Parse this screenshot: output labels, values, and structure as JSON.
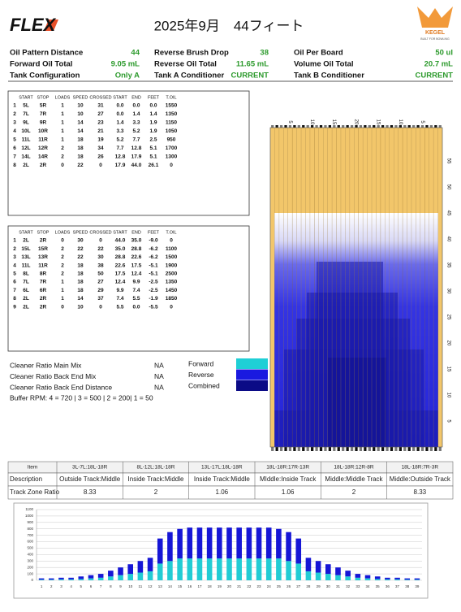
{
  "header": {
    "logo": "FLEX",
    "title": "2025年9月　44フィート",
    "brand": "KEGEL",
    "brand_tagline": "BUILT FOR BOWLING"
  },
  "info": [
    [
      {
        "label": "Oil Pattern Distance",
        "value": "44"
      },
      {
        "label": "Forward Oil Total",
        "value": "9.05 mL"
      },
      {
        "label": "Tank Configuration",
        "value": "Only A"
      }
    ],
    [
      {
        "label": "Reverse Brush Drop",
        "value": "38"
      },
      {
        "label": "Reverse Oil Total",
        "value": "11.65 mL"
      },
      {
        "label": "Tank A Conditioner",
        "value": "CURRENT"
      }
    ],
    [
      {
        "label": "Oil Per Board",
        "value": "50 ul"
      },
      {
        "label": "Volume Oil Total",
        "value": "20.7 mL"
      },
      {
        "label": "Tank B Conditioner",
        "value": "CURRENT"
      }
    ]
  ],
  "forward_table": {
    "headers": [
      "START",
      "STOP",
      "LOADS",
      "SPEED",
      "CROSSED",
      "START",
      "END",
      "FEET",
      "T.OIL"
    ],
    "rows": [
      [
        "1",
        "5L",
        "5R",
        "1",
        "10",
        "31",
        "0.0",
        "0.0",
        "0.0",
        "1550"
      ],
      [
        "2",
        "7L",
        "7R",
        "1",
        "10",
        "27",
        "0.0",
        "1.4",
        "1.4",
        "1350"
      ],
      [
        "3",
        "9L",
        "9R",
        "1",
        "14",
        "23",
        "1.4",
        "3.3",
        "1.9",
        "1150"
      ],
      [
        "4",
        "10L",
        "10R",
        "1",
        "14",
        "21",
        "3.3",
        "5.2",
        "1.9",
        "1050"
      ],
      [
        "5",
        "11L",
        "11R",
        "1",
        "18",
        "19",
        "5.2",
        "7.7",
        "2.5",
        "950"
      ],
      [
        "6",
        "12L",
        "12R",
        "2",
        "18",
        "34",
        "7.7",
        "12.8",
        "5.1",
        "1700"
      ],
      [
        "7",
        "14L",
        "14R",
        "2",
        "18",
        "26",
        "12.8",
        "17.9",
        "5.1",
        "1300"
      ],
      [
        "8",
        "2L",
        "2R",
        "0",
        "22",
        "0",
        "17.9",
        "44.0",
        "26.1",
        "0"
      ]
    ]
  },
  "reverse_table": {
    "headers": [
      "START",
      "STOP",
      "LOADS",
      "SPEED",
      "CROSSED",
      "START",
      "END",
      "FEET",
      "T.OIL"
    ],
    "rows": [
      [
        "1",
        "2L",
        "2R",
        "0",
        "30",
        "0",
        "44.0",
        "35.0",
        "-9.0",
        "0"
      ],
      [
        "2",
        "15L",
        "15R",
        "2",
        "22",
        "22",
        "35.0",
        "28.8",
        "-6.2",
        "1100"
      ],
      [
        "3",
        "13L",
        "13R",
        "2",
        "22",
        "30",
        "28.8",
        "22.6",
        "-6.2",
        "1500"
      ],
      [
        "4",
        "11L",
        "11R",
        "2",
        "18",
        "38",
        "22.6",
        "17.5",
        "-5.1",
        "1900"
      ],
      [
        "5",
        "8L",
        "8R",
        "2",
        "18",
        "50",
        "17.5",
        "12.4",
        "-5.1",
        "2500"
      ],
      [
        "6",
        "7L",
        "7R",
        "1",
        "18",
        "27",
        "12.4",
        "9.9",
        "-2.5",
        "1350"
      ],
      [
        "7",
        "6L",
        "6R",
        "1",
        "18",
        "29",
        "9.9",
        "7.4",
        "-2.5",
        "1450"
      ],
      [
        "8",
        "2L",
        "2R",
        "1",
        "14",
        "37",
        "7.4",
        "5.5",
        "-1.9",
        "1850"
      ],
      [
        "9",
        "2L",
        "2R",
        "0",
        "10",
        "0",
        "5.5",
        "0.0",
        "-5.5",
        "0"
      ]
    ]
  },
  "cleaner": {
    "rows": [
      {
        "label": "Cleaner Ratio Main Mix",
        "value": "NA"
      },
      {
        "label": "Cleaner Ratio Back End Mix",
        "value": "NA"
      },
      {
        "label": "Cleaner Ratio Back End Distance",
        "value": "NA"
      }
    ],
    "buffer_rpm": "Buffer RPM: 4 = 720 | 3 = 500 | 2 = 200| 1 = 50"
  },
  "legend": [
    {
      "label": "Forward",
      "color": "#1fcfd6"
    },
    {
      "label": "Reverse",
      "color": "#1a1ae0"
    },
    {
      "label": "Combined",
      "color": "#0b0b86"
    }
  ],
  "lane_graph": {
    "board_ticks": [
      5,
      10,
      15,
      20,
      {
        "value": 25,
        "label": "15"
      },
      {
        "value": 30,
        "label": "10"
      },
      {
        "value": 35,
        "label": "5"
      }
    ],
    "feet_ticks": [
      5,
      10,
      15,
      20,
      25,
      30,
      35,
      40,
      45,
      50,
      55
    ],
    "feet_lim": [
      0,
      60
    ]
  },
  "track_table": {
    "row_headers": [
      "Item",
      "Description",
      "Track Zone Ratio"
    ],
    "items": [
      "3L-7L:18L-18R",
      "8L-12L:18L-18R",
      "13L-17L:18L-18R",
      "18L-18R:17R-13R",
      "18L-18R:12R-8R",
      "18L-18R:7R-3R"
    ],
    "descriptions": [
      "Outside Track:Middle",
      "Inside Track:Middle",
      "Inside Track:Middle",
      "MIddle:Inside Track",
      "Middle:Middle Track",
      "Middle:Outside Track"
    ],
    "ratios": [
      "8.33",
      "2",
      "1.06",
      "1.06",
      "2",
      "8.33"
    ]
  },
  "chart_data": {
    "type": "bar",
    "stacked": true,
    "categories": [
      1,
      2,
      3,
      4,
      5,
      6,
      7,
      8,
      9,
      10,
      11,
      12,
      13,
      14,
      15,
      16,
      17,
      18,
      19,
      20,
      21,
      22,
      23,
      24,
      25,
      26,
      27,
      28,
      29,
      30,
      31,
      32,
      33,
      34,
      35,
      36,
      37,
      38,
      39
    ],
    "series": [
      {
        "color": "#22ccd4",
        "values": [
          10,
          10,
          15,
          15,
          20,
          30,
          40,
          60,
          80,
          100,
          120,
          140,
          260,
          300,
          340,
          340,
          340,
          340,
          340,
          340,
          340,
          340,
          340,
          340,
          340,
          300,
          260,
          140,
          120,
          100,
          80,
          60,
          40,
          30,
          20,
          15,
          15,
          10,
          10
        ]
      },
      {
        "color": "#1616d6",
        "values": [
          20,
          20,
          25,
          25,
          40,
          50,
          60,
          90,
          120,
          150,
          180,
          210,
          390,
          450,
          460,
          480,
          480,
          480,
          480,
          480,
          480,
          480,
          480,
          480,
          460,
          450,
          390,
          210,
          180,
          150,
          120,
          90,
          60,
          50,
          40,
          25,
          25,
          20,
          20
        ]
      }
    ],
    "ylim": [
      0,
      1100
    ],
    "yticks": [
      0,
      100,
      200,
      300,
      400,
      500,
      600,
      700,
      800,
      900,
      1000,
      1100
    ],
    "grid": true
  }
}
